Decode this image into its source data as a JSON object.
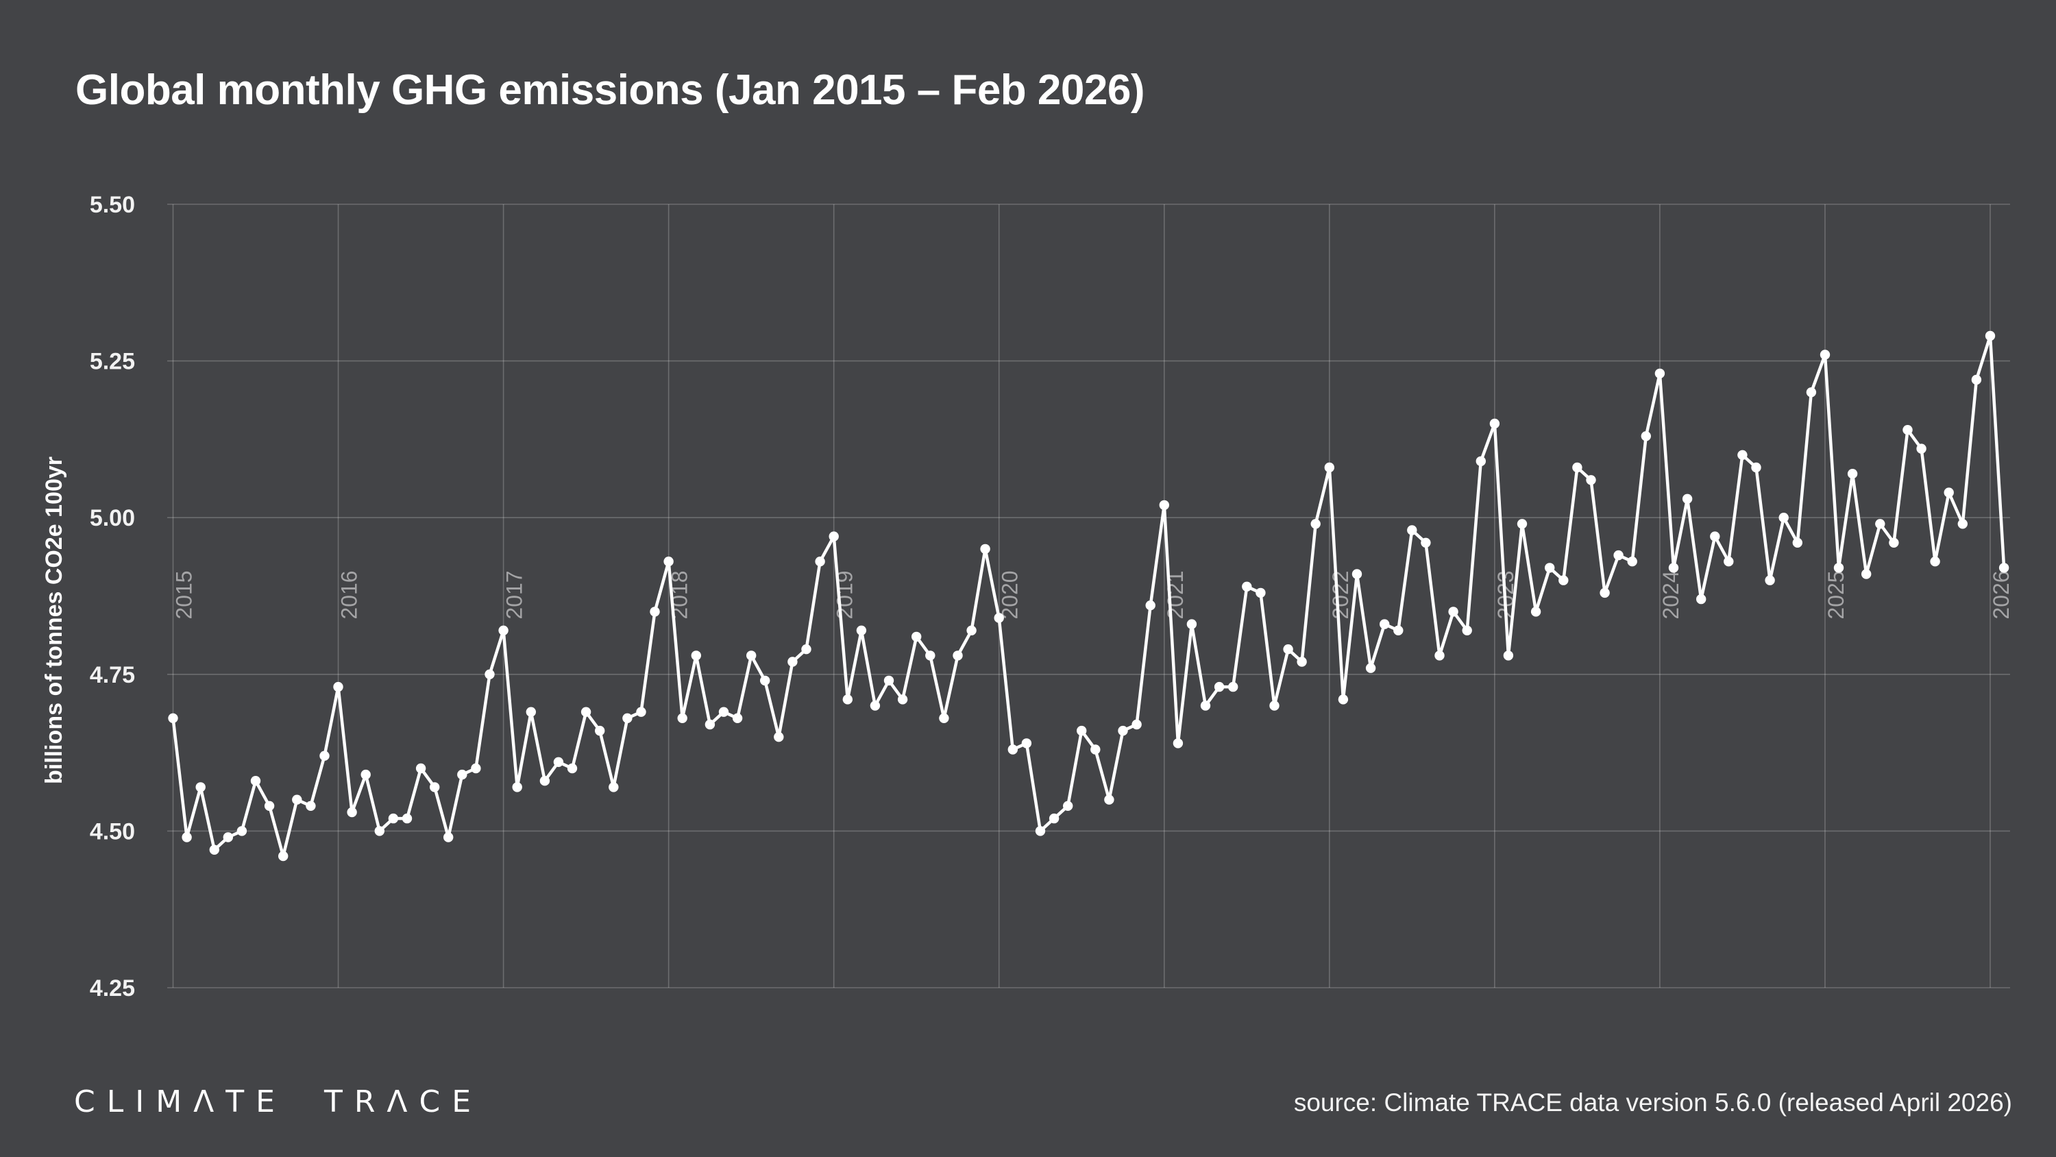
{
  "title": "Global monthly GHG emissions (Jan 2015 – Feb 2026)",
  "footer": {
    "logo_text": "CLIMΛTE TRΛCE",
    "source_text": "source: Climate TRACE data version 5.6.0 (released April 2026)"
  },
  "colors": {
    "background": "#434447",
    "line": "#ffffff",
    "marker": "#ffffff",
    "grid": "rgba(255,255,255,0.22)",
    "year_label": "#a4a4a6",
    "tick_label": "#f2f2f2",
    "axis_title": "#ffffff"
  },
  "chart_data": {
    "type": "line",
    "title": "Global monthly GHG emissions (Jan 2015 – Feb 2026)",
    "xlabel": "",
    "ylabel": "billions of tonnes CO2e 100yr",
    "ylim": [
      4.25,
      5.5
    ],
    "yticks": [
      "5.50",
      "5.25",
      "5.00",
      "4.75",
      "4.50",
      "4.25"
    ],
    "x_years": [
      "2015",
      "2016",
      "2017",
      "2018",
      "2019",
      "2020",
      "2021",
      "2022",
      "2023",
      "2024",
      "2025",
      "2026"
    ],
    "x_range": "Jan 2015 – Feb 2026",
    "x_frequency": "monthly",
    "grid": true,
    "legend": "none",
    "series": [
      {
        "name": "Global monthly GHG emissions (billions of tonnes CO2e 100yr)",
        "unit": "billions of tonnes CO2e",
        "values_by_year": {
          "2015": [
            4.68,
            4.49,
            4.57,
            4.47,
            4.49,
            4.5,
            4.58,
            4.54,
            4.46,
            4.55,
            4.54,
            4.62
          ],
          "2016": [
            4.73,
            4.53,
            4.59,
            4.5,
            4.52,
            4.52,
            4.6,
            4.57,
            4.49,
            4.59,
            4.6,
            4.75
          ],
          "2017": [
            4.82,
            4.57,
            4.69,
            4.58,
            4.61,
            4.6,
            4.69,
            4.66,
            4.57,
            4.68,
            4.69,
            4.85
          ],
          "2018": [
            4.93,
            4.68,
            4.78,
            4.67,
            4.69,
            4.68,
            4.78,
            4.74,
            4.65,
            4.77,
            4.79,
            4.93
          ],
          "2019": [
            4.97,
            4.71,
            4.82,
            4.7,
            4.74,
            4.71,
            4.81,
            4.78,
            4.68,
            4.78,
            4.82,
            4.95
          ],
          "2020": [
            4.84,
            4.63,
            4.64,
            4.5,
            4.52,
            4.54,
            4.66,
            4.63,
            4.55,
            4.66,
            4.67,
            4.86
          ],
          "2021": [
            5.02,
            4.64,
            4.83,
            4.7,
            4.73,
            4.73,
            4.89,
            4.88,
            4.7,
            4.79,
            4.77,
            4.99
          ],
          "2022": [
            5.08,
            4.71,
            4.91,
            4.76,
            4.83,
            4.82,
            4.98,
            4.96,
            4.78,
            4.85,
            4.82,
            5.09
          ],
          "2023": [
            5.15,
            4.78,
            4.99,
            4.85,
            4.92,
            4.9,
            5.08,
            5.06,
            4.88,
            4.94,
            4.93,
            5.13
          ],
          "2024": [
            5.23,
            4.92,
            5.03,
            4.87,
            4.97,
            4.93,
            5.1,
            5.08,
            4.9,
            5.0,
            4.96,
            5.2
          ],
          "2025": [
            5.26,
            4.92,
            5.07,
            4.91,
            4.99,
            4.96,
            5.14,
            5.11,
            4.93,
            5.04,
            4.99,
            5.22
          ],
          "2026": [
            5.29,
            4.92
          ]
        }
      }
    ]
  }
}
